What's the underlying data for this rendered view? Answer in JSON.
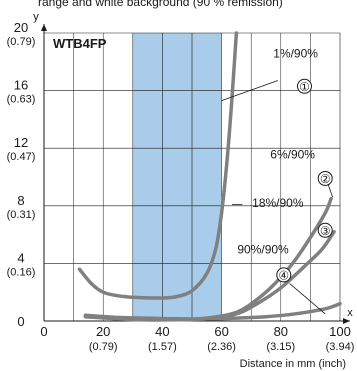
{
  "header": {
    "caption_fragment": "range and white background (90 % remission)"
  },
  "chart_data": {
    "type": "line",
    "title": "WTB4FP",
    "xlabel": "Distance in mm (inch)",
    "xaxis_letter": "x",
    "yaxis_letter": "y",
    "xlim": [
      0,
      100
    ],
    "ylim": [
      0,
      20
    ],
    "x_ticks": [
      {
        "value": 0,
        "label": "0",
        "sub": ""
      },
      {
        "value": 20,
        "label": "20",
        "sub": "(0.79)"
      },
      {
        "value": 40,
        "label": "40",
        "sub": "(1.57)"
      },
      {
        "value": 60,
        "label": "60",
        "sub": "(2.36)"
      },
      {
        "value": 80,
        "label": "80",
        "sub": "(3.15)"
      },
      {
        "value": 100,
        "label": "100",
        "sub": "(3.94)"
      }
    ],
    "y_ticks": [
      {
        "value": 0,
        "label": "0",
        "sub": ""
      },
      {
        "value": 4,
        "label": "4",
        "sub": "(0.16)"
      },
      {
        "value": 8,
        "label": "8",
        "sub": "(0.31)"
      },
      {
        "value": 12,
        "label": "12",
        "sub": "(0.47)"
      },
      {
        "value": 16,
        "label": "16",
        "sub": "(0.63)"
      },
      {
        "value": 20,
        "label": "20",
        "sub": "(0.79)"
      }
    ],
    "grid": true,
    "highlight_band": {
      "x0": 30,
      "x1": 60,
      "color": "#a9cceb"
    },
    "colors": {
      "curve": "#808080",
      "grid": "#1a1a1a",
      "band_divider": "#6f8fb0"
    },
    "series": [
      {
        "name": "1%/90%",
        "marker": "①",
        "points": [
          [
            12,
            3.6
          ],
          [
            16,
            2.6
          ],
          [
            20,
            2.0
          ],
          [
            25,
            1.75
          ],
          [
            30,
            1.65
          ],
          [
            40,
            1.6
          ],
          [
            45,
            1.7
          ],
          [
            50,
            2.1
          ],
          [
            55,
            3.3
          ],
          [
            58,
            5.0
          ],
          [
            60,
            7.5
          ],
          [
            62,
            11.5
          ],
          [
            63.5,
            15.5
          ],
          [
            65,
            20
          ]
        ]
      },
      {
        "name": "6%/90%",
        "marker": "②",
        "points": [
          [
            14,
            0.35
          ],
          [
            30,
            0.12
          ],
          [
            45,
            0.1
          ],
          [
            55,
            0.2
          ],
          [
            65,
            0.6
          ],
          [
            72,
            1.5
          ],
          [
            78,
            2.6
          ],
          [
            84,
            4.0
          ],
          [
            90,
            5.8
          ],
          [
            95,
            7.5
          ],
          [
            97,
            8.5
          ]
        ]
      },
      {
        "name": "18%/90%",
        "marker": "③",
        "points": [
          [
            14,
            0.3
          ],
          [
            30,
            0.1
          ],
          [
            45,
            0.08
          ],
          [
            55,
            0.15
          ],
          [
            65,
            0.5
          ],
          [
            72,
            1.2
          ],
          [
            80,
            2.3
          ],
          [
            88,
            3.8
          ],
          [
            94,
            5.0
          ],
          [
            98,
            6.2
          ]
        ]
      },
      {
        "name": "90%/90%",
        "marker": "④",
        "points": [
          [
            14,
            0.4
          ],
          [
            25,
            0.25
          ],
          [
            35,
            0.2
          ],
          [
            45,
            0.15
          ],
          [
            55,
            0.15
          ],
          [
            65,
            0.2
          ],
          [
            75,
            0.3
          ],
          [
            85,
            0.5
          ],
          [
            95,
            0.85
          ],
          [
            100,
            1.2
          ]
        ]
      }
    ],
    "annotations": [
      {
        "series": 0,
        "text_x": 85,
        "text_y": 18.3,
        "marker_x": 88,
        "marker_y": 16.3,
        "leader": [
          [
            79,
            16.7
          ],
          [
            60,
            15.3
          ]
        ]
      },
      {
        "series": 1,
        "text_x": 84,
        "text_y": 11.3,
        "marker_x": 95,
        "marker_y": 9.9,
        "leader": [
          [
            96,
            9.5
          ],
          [
            97.5,
            8.6
          ]
        ]
      },
      {
        "series": 2,
        "text_x": 79,
        "text_y": 7.9,
        "marker_x": 95,
        "marker_y": 6.3,
        "leader": [
          [
            67,
            8.1
          ],
          [
            63.5,
            8.1
          ]
        ]
      },
      {
        "series": 3,
        "text_x": 74,
        "text_y": 4.7,
        "marker_x": 81,
        "marker_y": 3.2,
        "leader": [
          [
            83,
            2.6
          ],
          [
            95,
            0.5
          ]
        ]
      }
    ]
  }
}
